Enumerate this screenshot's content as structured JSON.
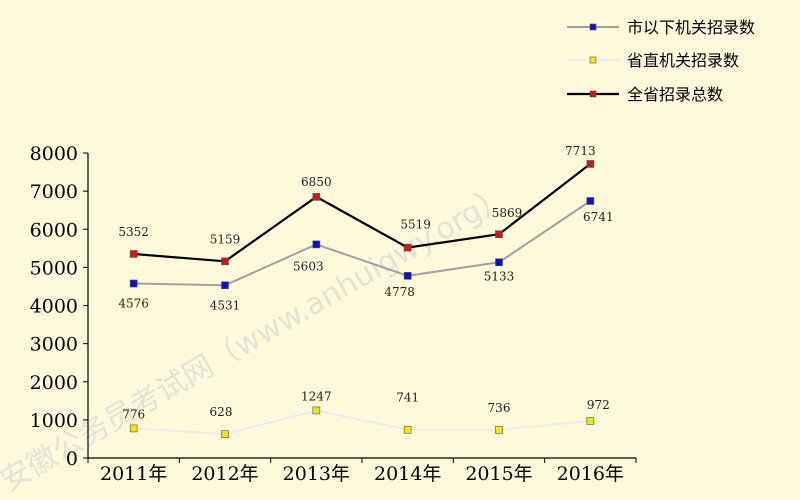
{
  "chart_data": {
    "type": "line",
    "title": "",
    "xlabel": "",
    "ylabel": "",
    "categories": [
      "2011年",
      "2012年",
      "2013年",
      "2014年",
      "2015年",
      "2016年"
    ],
    "ylim": [
      0,
      8000
    ],
    "yticks": [
      "0",
      "1000",
      "2000",
      "3000",
      "4000",
      "5000",
      "6000",
      "7000",
      "8000"
    ],
    "grid": false,
    "legend_position": "top-right",
    "series": [
      {
        "name": "市以下机关招录数",
        "values": [
          4576,
          4531,
          5603,
          4778,
          5133,
          6741
        ],
        "labels": [
          "4576",
          "4531",
          "5603",
          "4778",
          "5133",
          "6741"
        ],
        "line_color": "#a0a0a0",
        "marker_color": "#1010cc"
      },
      {
        "name": "省直机关招录数",
        "values": [
          776,
          628,
          1247,
          741,
          736,
          972
        ],
        "labels": [
          "776",
          "628",
          "1247",
          "741",
          "736",
          "972"
        ],
        "line_color": "#ebebeb",
        "marker_color": "#f4e410"
      },
      {
        "name": "全省招录总数",
        "values": [
          5352,
          5159,
          6850,
          5519,
          5869,
          7713
        ],
        "labels": [
          "5352",
          "5159",
          "6850",
          "5519",
          "5869",
          "7713"
        ],
        "line_color": "#000000",
        "marker_color": "#cc1a1a"
      }
    ],
    "watermark": "安徽公务员考试网（www.anhuigwy.org）"
  }
}
